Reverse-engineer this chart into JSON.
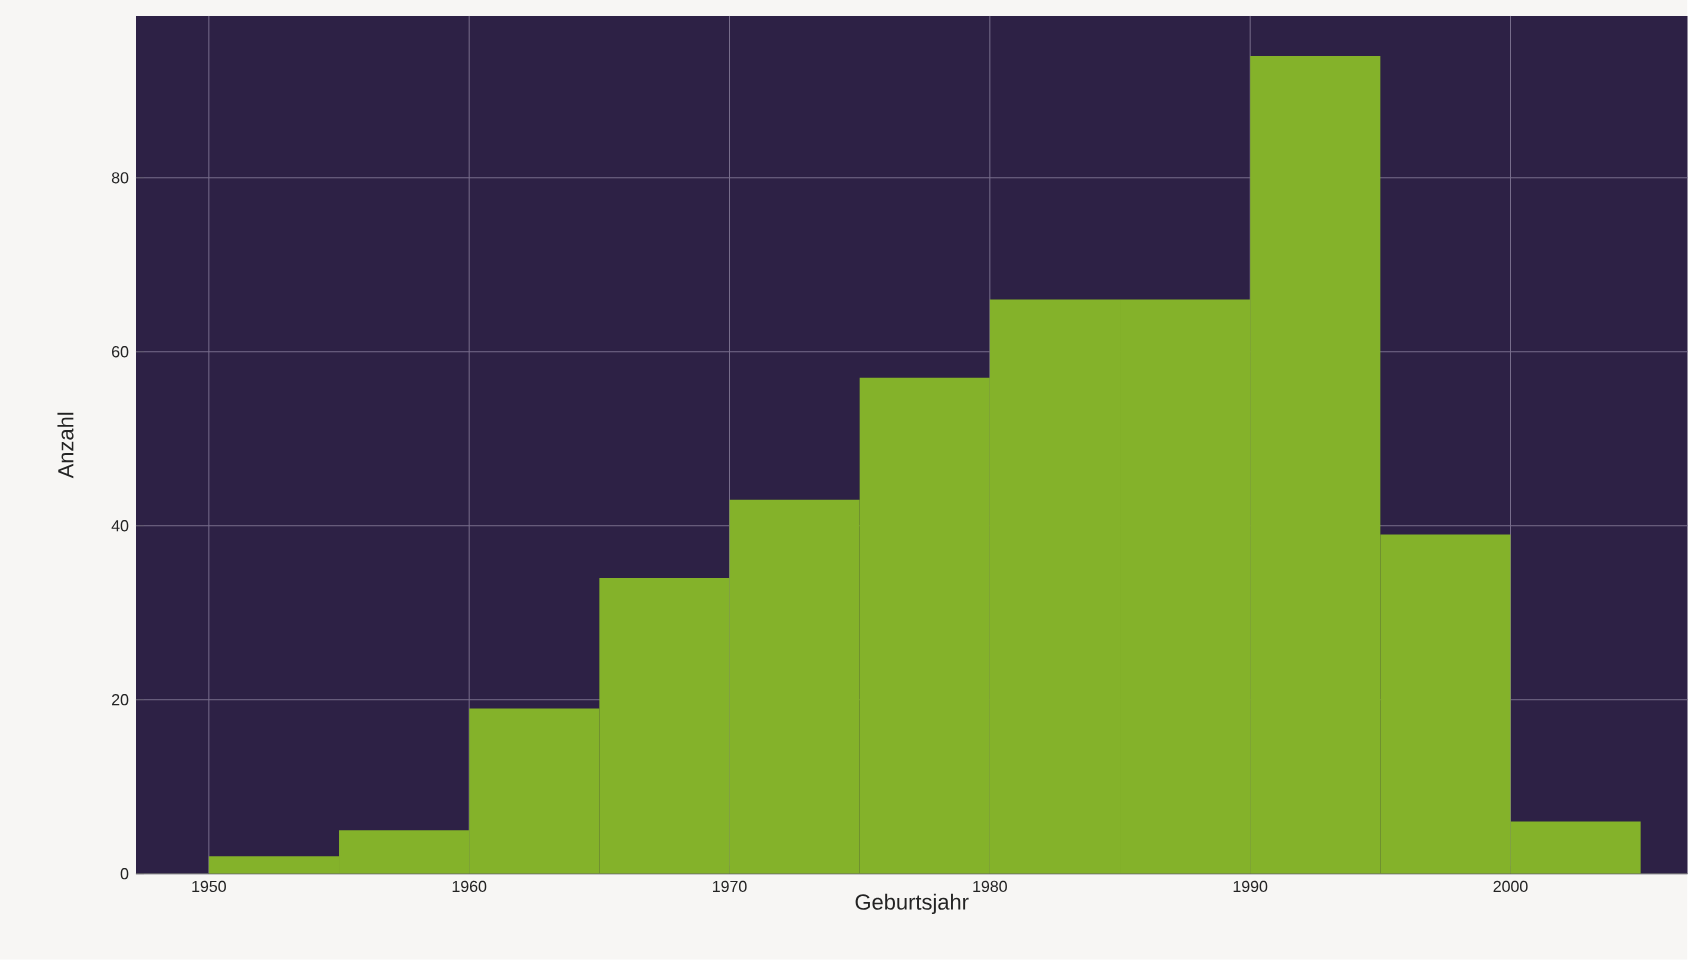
{
  "chart_data": {
    "type": "histogram",
    "xlabel": "Geburtsjahr",
    "ylabel": "Anzahl",
    "bins": [
      1950,
      1955,
      1960,
      1965,
      1970,
      1975,
      1980,
      1985,
      1990,
      1995,
      2000,
      2005
    ],
    "values": [
      2,
      5,
      19,
      34,
      43,
      57,
      66,
      66,
      94,
      39,
      6
    ],
    "color": "#84b22a",
    "xlim": [
      1947.2,
      2006.8
    ],
    "ylim": [
      0,
      98.6
    ],
    "xticks": [
      1950,
      1960,
      1970,
      1980,
      1990,
      2000
    ],
    "yticks": [
      0,
      20,
      40,
      60,
      80
    ],
    "grid": true
  }
}
